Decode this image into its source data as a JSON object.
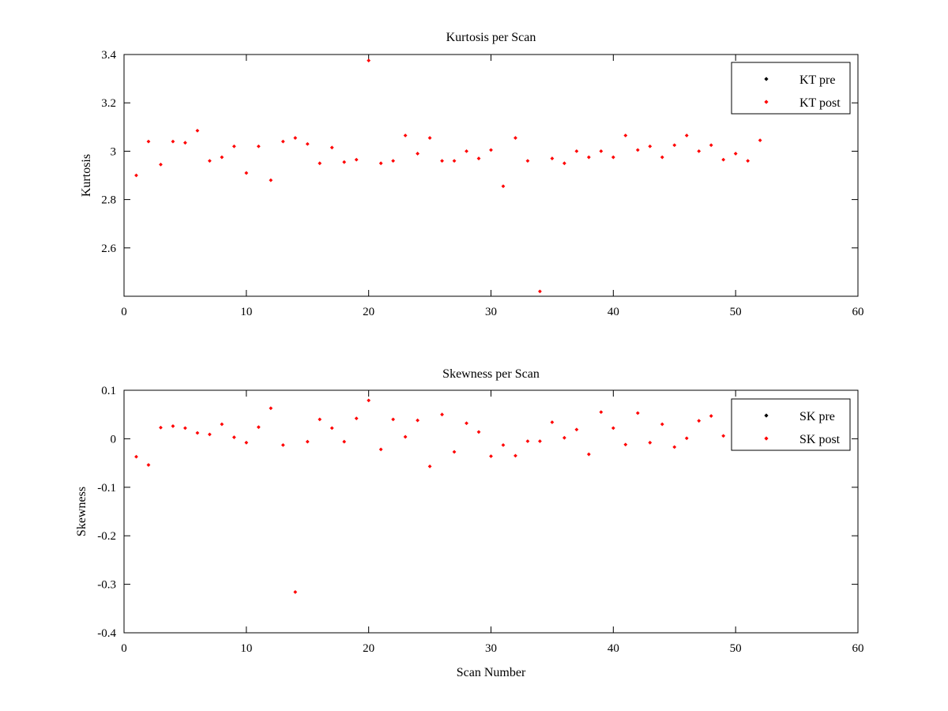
{
  "chart_data": [
    {
      "type": "scatter",
      "title": "Kurtosis per Scan",
      "xlabel": "",
      "ylabel": "Kurtosis",
      "xlim": [
        0,
        60
      ],
      "ylim": [
        2.4,
        3.4
      ],
      "xticks": [
        "0",
        "10",
        "20",
        "30",
        "40",
        "50",
        "60"
      ],
      "yticks": [
        "2.6",
        "2.8",
        "3",
        "3.2",
        "3.4"
      ],
      "ytick_values": [
        2.6,
        2.8,
        3.0,
        3.2,
        3.4
      ],
      "legend_position": "top-right",
      "grid": false,
      "series": [
        {
          "name": "KT pre",
          "color": "#000000",
          "x": [],
          "y": []
        },
        {
          "name": "KT post",
          "color": "#ff0000",
          "x": [
            1,
            2,
            3,
            4,
            5,
            6,
            7,
            8,
            9,
            10,
            11,
            12,
            13,
            14,
            15,
            16,
            17,
            18,
            19,
            20,
            21,
            22,
            23,
            24,
            25,
            26,
            27,
            28,
            29,
            30,
            31,
            32,
            33,
            34,
            35,
            36,
            37,
            38,
            39,
            40,
            41,
            42,
            43,
            44,
            45,
            46,
            47,
            48,
            49,
            50,
            51,
            52
          ],
          "y": [
            2.9,
            3.04,
            2.945,
            3.04,
            3.035,
            3.085,
            2.96,
            2.975,
            3.02,
            2.91,
            3.02,
            2.88,
            3.04,
            3.055,
            3.03,
            2.95,
            3.015,
            2.955,
            2.965,
            3.375,
            2.95,
            2.96,
            3.065,
            2.99,
            3.055,
            2.96,
            2.96,
            3.0,
            2.97,
            3.005,
            2.855,
            3.055,
            2.96,
            2.42,
            2.97,
            2.95,
            3.0,
            2.975,
            3.0,
            2.975,
            3.065,
            3.005,
            3.02,
            2.975,
            3.025,
            3.065,
            3.0,
            3.025,
            2.965,
            2.99,
            2.96,
            3.045
          ]
        }
      ]
    },
    {
      "type": "scatter",
      "title": "Skewness per Scan",
      "xlabel": "Scan Number",
      "ylabel": "Skewness",
      "xlim": [
        0,
        60
      ],
      "ylim": [
        -0.4,
        0.1
      ],
      "xticks": [
        "0",
        "10",
        "20",
        "30",
        "40",
        "50",
        "60"
      ],
      "yticks": [
        "-0.4",
        "-0.3",
        "-0.2",
        "-0.1",
        "0",
        "0.1"
      ],
      "ytick_values": [
        -0.4,
        -0.3,
        -0.2,
        -0.1,
        0.0,
        0.1
      ],
      "legend_position": "top-right",
      "grid": false,
      "series": [
        {
          "name": "SK pre",
          "color": "#000000",
          "x": [],
          "y": []
        },
        {
          "name": "SK post",
          "color": "#ff0000",
          "x": [
            1,
            2,
            3,
            4,
            5,
            6,
            7,
            8,
            9,
            10,
            11,
            12,
            13,
            14,
            15,
            16,
            17,
            18,
            19,
            20,
            21,
            22,
            23,
            24,
            25,
            26,
            27,
            28,
            29,
            30,
            31,
            32,
            33,
            34,
            35,
            36,
            37,
            38,
            39,
            40,
            41,
            42,
            43,
            44,
            45,
            46,
            47,
            48,
            49,
            50,
            51,
            52
          ],
          "y": [
            -0.037,
            -0.054,
            0.023,
            0.026,
            0.022,
            0.012,
            0.009,
            0.03,
            0.003,
            -0.008,
            0.024,
            0.063,
            -0.013,
            -0.316,
            -0.006,
            0.04,
            0.022,
            -0.006,
            0.042,
            0.079,
            -0.022,
            0.04,
            0.004,
            0.038,
            -0.057,
            0.05,
            -0.027,
            0.032,
            0.014,
            -0.036,
            -0.013,
            -0.035,
            -0.005,
            -0.005,
            0.034,
            0.002,
            0.019,
            -0.032,
            0.055,
            0.022,
            -0.012,
            0.053,
            -0.008,
            0.03,
            -0.017,
            0.001,
            0.037,
            0.047,
            0.006,
            0.012,
            0.008,
            0.01
          ]
        }
      ]
    }
  ]
}
